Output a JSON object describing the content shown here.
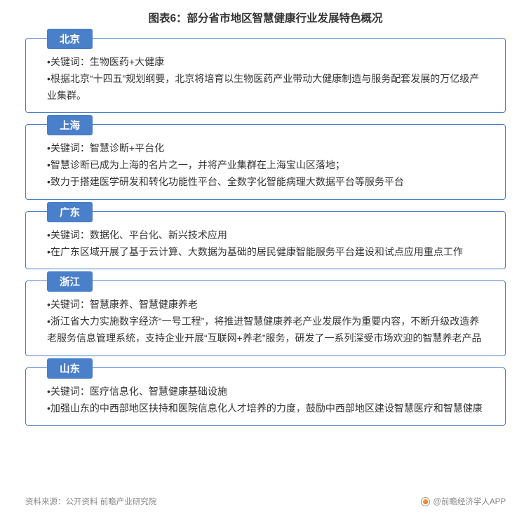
{
  "title": "图表6：部分省市地区智慧健康行业发展特色概况",
  "colors": {
    "border": "#4a7fc9",
    "header_bg": "#4a7fc9",
    "header_text": "#ffffff",
    "body_text": "#333333",
    "footer_text": "#888888",
    "background": "#ffffff"
  },
  "cards": [
    {
      "header": "北京",
      "items": [
        "•关键词：生物医药+大健康",
        "•根据北京“十四五”规划纲要，北京将培育以生物医药产业带动大健康制造与服务配套发展的万亿级产业集群。"
      ]
    },
    {
      "header": "上海",
      "items": [
        "•关键词：智慧诊断+平台化",
        "•智慧诊断已成为上海的名片之一，并将产业集群在上海宝山区落地；",
        "•致力于搭建医学研发和转化功能性平台、全数字化智能病理大数据平台等服务平台"
      ]
    },
    {
      "header": "广东",
      "items": [
        "•关键词：数据化、平台化、新兴技术应用",
        "•在广东区域开展了基于云计算、大数据为基础的居民健康智能服务平台建设和试点应用重点工作"
      ]
    },
    {
      "header": "浙江",
      "items": [
        "•关键词：智慧康养、智慧健康养老",
        "•浙江省大力实施数字经济“一号工程”，将推进智慧健康养老产业发展作为重要内容，不断升级改造养老服务信息管理系统，支持企业开展“互联网+养老”服务，研发了一系列深受市场欢迎的智慧养老产品"
      ]
    },
    {
      "header": "山东",
      "items": [
        "•关键词：医疗信息化、智慧健康基础设施",
        "•加强山东的中西部地区扶持和医院信息化人才培养的力度，鼓励中西部地区建设智慧医疗和智慧健康"
      ]
    }
  ],
  "footer": {
    "left": "资料来源：公开资料 前瞻产业研究院",
    "right": "@前瞻经济学人APP"
  }
}
